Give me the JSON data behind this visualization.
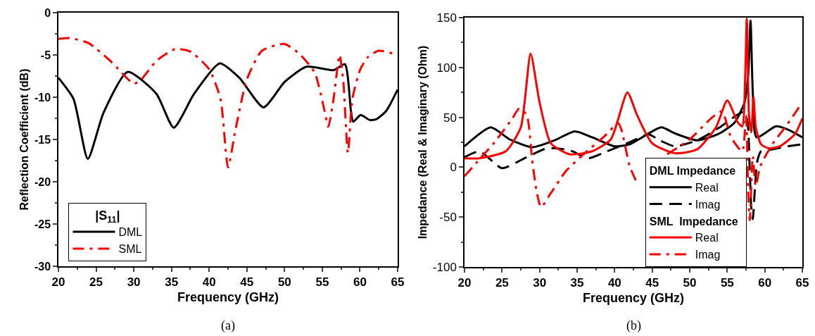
{
  "chart_data": [
    {
      "type": "line",
      "xlabel": "Frequency (GHz)",
      "ylabel": "Reflection Coefficient (dB)",
      "legend_title": "|S$_{11}$|",
      "legend": "bottom left",
      "annotations": [
        "(a)"
      ],
      "xlim": [
        20,
        65
      ],
      "xticks": [
        20,
        25,
        30,
        35,
        40,
        45,
        50,
        55,
        60,
        65
      ],
      "ylim": [
        -30,
        0
      ],
      "yticks": [
        -30,
        -25,
        -20,
        -15,
        -10,
        -5,
        0
      ],
      "grid": false,
      "series": [
        {
          "name": "DML",
          "color": "#000000",
          "line_style": "solid",
          "x": [
            20,
            22,
            23.9,
            26,
            29.2,
            33,
            35.3,
            38,
            41.4,
            44,
            47.2,
            50,
            52.9,
            56.5,
            58.0,
            58.8,
            59.1,
            60.1,
            61.3,
            62.2,
            63.5,
            65
          ],
          "values": [
            -7.7,
            -10.2,
            -17.3,
            -11.8,
            -7.0,
            -9.6,
            -13.6,
            -9.6,
            -6.0,
            -7.7,
            -11.2,
            -8.2,
            -6.4,
            -6.8,
            -6.1,
            -11.6,
            -12.9,
            -12.1,
            -12.7,
            -12.6,
            -11.6,
            -9.1
          ]
        },
        {
          "name": "SML",
          "color": "#ff0000",
          "line_style": "dashdot",
          "x": [
            20,
            21.5,
            24,
            27,
            30,
            31,
            33,
            35.5,
            37.5,
            40,
            41.5,
            42.5,
            43.5,
            45,
            47,
            50,
            52,
            54,
            55.3,
            55.8,
            56.5,
            57.3,
            57.8,
            58.4,
            59,
            60,
            61,
            62.5,
            65
          ],
          "values": [
            -3.1,
            -3.0,
            -3.6,
            -5.8,
            -8.4,
            -7.9,
            -5.7,
            -4.3,
            -4.6,
            -6.7,
            -10.2,
            -18.3,
            -13.8,
            -7.9,
            -4.5,
            -3.7,
            -4.9,
            -7.1,
            -11.6,
            -13.5,
            -10.2,
            -5.0,
            -8.2,
            -16.6,
            -10.2,
            -6.8,
            -5.3,
            -4.5,
            -5.0
          ]
        }
      ]
    },
    {
      "type": "line",
      "xlabel": "Frequency (GHz)",
      "ylabel": "Impedance (Real & Imaginary (Ohm)",
      "legend": "bottom right",
      "annotations": [
        "(b)",
        "DML Impedance",
        "SML  Impedance"
      ],
      "xlim": [
        20,
        65
      ],
      "xticks": [
        20,
        25,
        30,
        35,
        40,
        45,
        50,
        55,
        60,
        65
      ],
      "ylim": [
        -100,
        150
      ],
      "yticks": [
        -100,
        -50,
        0,
        50,
        100,
        150
      ],
      "grid": false,
      "series": [
        {
          "name": "Real",
          "color": "#000000",
          "line_style": "solid",
          "x": [
            20,
            23.5,
            26,
            29,
            32,
            34.7,
            37,
            40,
            42,
            46.2,
            48,
            51,
            54,
            56,
            57.3,
            57.8,
            58.1,
            58.4,
            58.9,
            61.5,
            63,
            65
          ],
          "values": [
            21,
            40,
            28,
            20,
            27,
            36,
            30,
            21,
            23,
            40,
            34,
            27,
            34,
            45,
            65,
            94,
            147,
            75,
            30,
            41,
            38,
            30
          ]
        },
        {
          "name": "Imag",
          "color": "#000000",
          "line_style": "dashed",
          "x": [
            20,
            22,
            25,
            28,
            31,
            34,
            36.5,
            39,
            42,
            44.5,
            46,
            48,
            51,
            54,
            57,
            57.6,
            58.0,
            58.2,
            58.4,
            58.7,
            59,
            59.5,
            61,
            63,
            65
          ],
          "values": [
            10,
            16,
            -1,
            9,
            19,
            17,
            9,
            16,
            25,
            33,
            27,
            21,
            27,
            40,
            55,
            50,
            -4,
            -41,
            -52,
            -19,
            6,
            16,
            18,
            21,
            23
          ]
        },
        {
          "name": "Real",
          "color": "#ff0000",
          "line_style": "solid",
          "x": [
            20,
            22,
            25.5,
            27.5,
            28.8,
            30,
            31.5,
            34,
            37,
            39.5,
            41.7,
            43,
            45,
            48,
            51,
            53.5,
            55,
            56.4,
            57,
            57.4,
            57.6,
            57.9,
            58.2,
            58.5,
            58.8,
            59.5,
            60.5,
            62,
            64,
            65
          ],
          "values": [
            9,
            9,
            16,
            40,
            114,
            65,
            24,
            13,
            16,
            28,
            75,
            52,
            24,
            14,
            18,
            40,
            67,
            45,
            41,
            94,
            149,
            52,
            35,
            70,
            40,
            23,
            19,
            21,
            33,
            49
          ]
        },
        {
          "name": "Imag",
          "color": "#ff0000",
          "line_style": "dashdot",
          "x": [
            20,
            22,
            24,
            26.3,
            27.3,
            28.3,
            29,
            29.6,
            30.2,
            31.5,
            33.5,
            36,
            38.5,
            40.5,
            41,
            42,
            43,
            45,
            47,
            50,
            53,
            54.3,
            55.5,
            57,
            57.5,
            57.8,
            58,
            58.4,
            58.8,
            59.4,
            61,
            63,
            65
          ],
          "values": [
            -9,
            8,
            25,
            48,
            59,
            52,
            8,
            -24,
            -40,
            -26,
            -4,
            14,
            30,
            44,
            35,
            1,
            -16,
            null,
            13,
            28,
            50,
            56,
            30,
            16,
            52,
            -29,
            -53,
            11,
            -19,
            1,
            23,
            43,
            65
          ]
        }
      ]
    }
  ]
}
